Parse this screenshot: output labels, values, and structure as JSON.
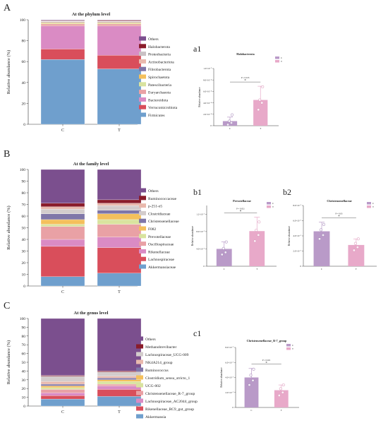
{
  "colors": {
    "Others": "#7b4f8e",
    "Halobacterota": "#8a1c2a",
    "Proteobacteria": "#c9c1c4",
    "Actinobacteriota": "#e9b9ad",
    "Fibrobacterota": "#7f76a8",
    "Spirochaetota": "#f4c05c",
    "Patescibacteria": "#d9e39f",
    "Euryarchaeota": "#e9a1a5",
    "Bacteroidota": "#da8bc4",
    "Verrucomicrobiota": "#d94e5b",
    "Firmicutes": "#6f9fcd",
    "Ruminococcaceae": "#8a1c2a",
    "p-251-o5": "#e9b9ad",
    "Clostridiaceae": "#d3cccc",
    "Christensenellaceae": "#7f76a8",
    "F082": "#f4c05c",
    "Prevotellaceae": "#d9e39f",
    "Oscillospiraceae": "#e9a1a5",
    "Rikenellaceae": "#da8bc4",
    "Lachnospiraceae": "#d94e5b",
    "Akkermansiaceae": "#6f9fcd",
    "Methanobrevibacter": "#8a1c2a",
    "Lachnospiraceae_UCG-009": "#d3cccc",
    "NK4A214_group": "#e9b9ad",
    "Ruminococcus": "#7f76a8",
    "Clostridium_sensu_stricto_1": "#f4c05c",
    "UCG-002": "#d9e39f",
    "Christensenellaceae_R-7_group": "#e9a1a5",
    "Lachnospiraceae_AC2044_group": "#da8bc4",
    "Rikenellaceae_RC9_gut_group": "#d94e5b",
    "Akkermansia": "#6f9fcd",
    "groupC": "#b99ac8",
    "groupT": "#e8a9c9"
  },
  "chart_data": [
    {
      "panel": "A",
      "type": "bar",
      "stacked": true,
      "title": "At the phylum level",
      "ylabel": "Relative abundance (%)",
      "ylim": [
        0,
        100
      ],
      "yticks": [
        0,
        20,
        40,
        60,
        80,
        100
      ],
      "categories": [
        "C",
        "T"
      ],
      "series": [
        {
          "name": "Firmicutes",
          "values": [
            62,
            53
          ]
        },
        {
          "name": "Verrucomicrobiota",
          "values": [
            10,
            13
          ]
        },
        {
          "name": "Bacteroidota",
          "values": [
            22,
            28
          ]
        },
        {
          "name": "Euryarchaeota",
          "values": [
            2,
            2
          ]
        },
        {
          "name": "Patescibacteria",
          "values": [
            0.8,
            0.8
          ]
        },
        {
          "name": "Spirochaetota",
          "values": [
            0.8,
            0.8
          ]
        },
        {
          "name": "Fibrobacterota",
          "values": [
            0.5,
            0.5
          ]
        },
        {
          "name": "Actinobacteriota",
          "values": [
            0.4,
            0.4
          ]
        },
        {
          "name": "Proteobacteria",
          "values": [
            0.5,
            0.4
          ]
        },
        {
          "name": "Halobacterota",
          "values": [
            0.4,
            0.7
          ]
        },
        {
          "name": "Others",
          "values": [
            0.6,
            0.4
          ]
        }
      ]
    },
    {
      "panel": "B",
      "type": "bar",
      "stacked": true,
      "title": "At the family level",
      "ylabel": "Relative abundance (%)",
      "ylim": [
        0,
        100
      ],
      "yticks": [
        0,
        10,
        20,
        30,
        40,
        50,
        60,
        70,
        80,
        90,
        100
      ],
      "categories": [
        "C",
        "T"
      ],
      "series": [
        {
          "name": "Akkermansiaceae",
          "values": [
            8,
            11
          ]
        },
        {
          "name": "Lachnospiraceae",
          "values": [
            26,
            22
          ]
        },
        {
          "name": "Rikenellaceae",
          "values": [
            6,
            9
          ]
        },
        {
          "name": "Oscillospiraceae",
          "values": [
            11,
            11
          ]
        },
        {
          "name": "Prevotellaceae",
          "values": [
            2,
            4
          ]
        },
        {
          "name": "F082",
          "values": [
            4,
            5
          ]
        },
        {
          "name": "Christensenellaceae",
          "values": [
            5,
            3
          ]
        },
        {
          "name": "Clostridiaceae",
          "values": [
            4,
            4
          ]
        },
        {
          "name": "p-251-o5",
          "values": [
            2,
            2
          ]
        },
        {
          "name": "Ruminococcaceae",
          "values": [
            3,
            3
          ]
        },
        {
          "name": "Others",
          "values": [
            29,
            26
          ]
        }
      ]
    },
    {
      "panel": "C",
      "type": "bar",
      "stacked": true,
      "title": "At the genus level",
      "ylabel": "Relative abundance (%)",
      "ylim": [
        0,
        100
      ],
      "yticks": [
        0,
        10,
        20,
        30,
        40,
        50,
        60,
        70,
        80,
        90,
        100
      ],
      "categories": [
        "C",
        "T"
      ],
      "series": [
        {
          "name": "Akkermansia",
          "values": [
            8,
            11
          ]
        },
        {
          "name": "Rikenellaceae_RC9_gut_group",
          "values": [
            4,
            8
          ]
        },
        {
          "name": "Lachnospiraceae_AC2044_group",
          "values": [
            3,
            4
          ]
        },
        {
          "name": "Christensenellaceae_R-7_group",
          "values": [
            4,
            2
          ]
        },
        {
          "name": "UCG-002",
          "values": [
            2,
            3
          ]
        },
        {
          "name": "Clostridium_sensu_stricto_1",
          "values": [
            2,
            2
          ]
        },
        {
          "name": "Ruminococcus",
          "values": [
            2,
            2
          ]
        },
        {
          "name": "NK4A214_group",
          "values": [
            3,
            2
          ]
        },
        {
          "name": "Lachnospiraceae_UCG-009",
          "values": [
            6,
            5
          ]
        },
        {
          "name": "Methanobrevibacter",
          "values": [
            1,
            1
          ]
        },
        {
          "name": "Others",
          "values": [
            65,
            60
          ]
        }
      ]
    },
    {
      "panel": "a1",
      "type": "bar",
      "title": "Halobacterota",
      "ylabel": "Relative abundance",
      "ylim": [
        0,
        0.001
      ],
      "yticks": [
        0,
        0.0002,
        0.0004,
        0.0006,
        0.0008,
        0.001
      ],
      "ytick_labels": [
        "0",
        "2.0×10⁻⁴",
        "4.0×10⁻⁴",
        "6.0×10⁻⁴",
        "8.0×10⁻⁴",
        "1.0×10⁻³"
      ],
      "categories": [
        "C",
        "T"
      ],
      "values": [
        8e-05,
        0.00045
      ],
      "errors": [
        7e-05,
        0.00024
      ],
      "points": [
        [
          2e-05,
          5e-05,
          8e-05,
          0.00019
        ],
        [
          0.00028,
          0.0004,
          0.00045,
          0.00068
        ]
      ],
      "sig": "*",
      "pvalue": "P = 0.013",
      "legend": [
        "C",
        "T"
      ]
    },
    {
      "panel": "b1",
      "type": "bar",
      "title": "Prevotellaceae",
      "ylabel": "Relative abundance",
      "ylim": [
        0,
        0.014
      ],
      "yticks": [
        0,
        0.004,
        0.008,
        0.012
      ],
      "ytick_labels": [
        "0",
        "4.0×10⁻³",
        "8.0×10⁻³",
        "1.2×10⁻²"
      ],
      "categories": [
        "C",
        "T"
      ],
      "values": [
        0.004,
        0.0081
      ],
      "errors": [
        0.0016,
        0.0032
      ],
      "points": [
        [
          0.0027,
          0.0032,
          0.0041,
          0.0056
        ],
        [
          0.0058,
          0.0072,
          0.0083,
          0.0102
        ]
      ],
      "sig": "*",
      "pvalue": "P = 0.021",
      "legend": [
        "C",
        "T"
      ]
    },
    {
      "panel": "b2",
      "type": "bar",
      "title": "Christensenellaceae",
      "ylabel": "Relative abundance",
      "ylim": [
        0,
        0.08
      ],
      "yticks": [
        0,
        0.02,
        0.04,
        0.06,
        0.08
      ],
      "ytick_labels": [
        "0",
        "2.0×10⁻²",
        "4.0×10⁻²",
        "6.0×10⁻²",
        "8.0×10⁻²"
      ],
      "categories": [
        "C",
        "T"
      ],
      "values": [
        0.046,
        0.028
      ],
      "errors": [
        0.012,
        0.008
      ],
      "points": [
        [
          0.036,
          0.041,
          0.048,
          0.055
        ],
        [
          0.021,
          0.025,
          0.03,
          0.036
        ]
      ],
      "sig": "*",
      "pvalue": "P = 0.03",
      "legend": [
        "C",
        "T"
      ]
    },
    {
      "panel": "c1",
      "type": "bar",
      "title": "Christensenellaceae_R-7_group",
      "ylabel": "Relative abundance",
      "ylim": [
        0,
        0.08
      ],
      "yticks": [
        0,
        0.02,
        0.04,
        0.06,
        0.08
      ],
      "ytick_labels": [
        "0",
        "2.0×10⁻²",
        "4.0×10⁻²",
        "6.0×10⁻²",
        "8.0×10⁻²"
      ],
      "categories": [
        "C",
        "T"
      ],
      "values": [
        0.04,
        0.023
      ],
      "errors": [
        0.012,
        0.007
      ],
      "points": [
        [
          0.03,
          0.036,
          0.043,
          0.051
        ],
        [
          0.016,
          0.02,
          0.025,
          0.03
        ]
      ],
      "sig": "*",
      "pvalue": "P = 0.021",
      "legend": [
        "C",
        "T"
      ]
    }
  ],
  "panel_labels": {
    "A": "A",
    "B": "B",
    "C": "C",
    "a1": "a1",
    "b1": "b1",
    "b2": "b2",
    "c1": "c1"
  }
}
